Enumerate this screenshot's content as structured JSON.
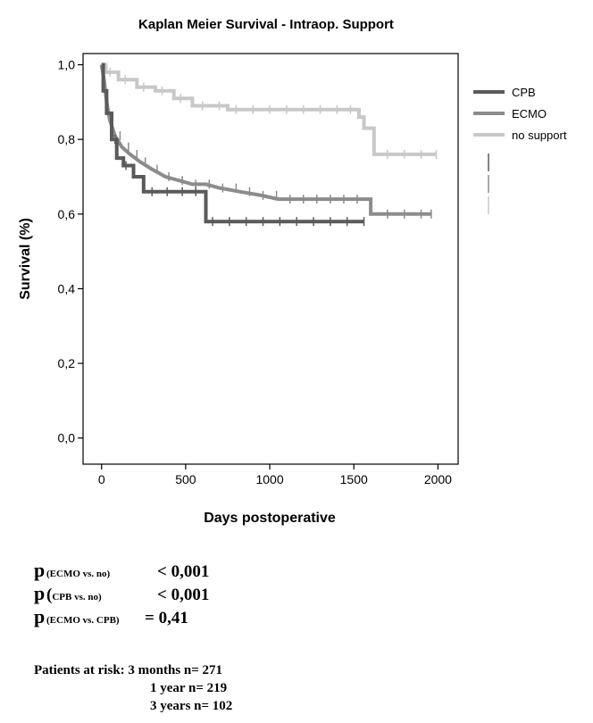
{
  "chart_data": {
    "type": "line",
    "title": "Kaplan Meier Survival - Intraop. Support",
    "xlabel": "Days postoperative",
    "ylabel": "Survival (%)",
    "xlim": [
      -110,
      2120
    ],
    "ylim": [
      -0.07,
      1.03
    ],
    "xticks": [
      0,
      500,
      1000,
      1500,
      2000
    ],
    "xtick_labels": [
      "0",
      "500",
      "1000",
      "1500",
      "2000"
    ],
    "yticks": [
      0.0,
      0.2,
      0.4,
      0.6,
      0.8,
      1.0
    ],
    "ytick_labels": [
      "0,0",
      "0,2",
      "0,4",
      "0,6",
      "0,8",
      "1,0"
    ],
    "grid": false,
    "legend": "right",
    "series": [
      {
        "name": "CPB",
        "color": "#5a5a5a",
        "x": [
          0,
          10,
          10,
          30,
          30,
          60,
          60,
          90,
          90,
          130,
          130,
          190,
          190,
          250,
          250,
          620,
          620,
          1560
        ],
        "y": [
          1.0,
          1.0,
          0.93,
          0.93,
          0.87,
          0.87,
          0.8,
          0.8,
          0.75,
          0.75,
          0.73,
          0.73,
          0.7,
          0.7,
          0.66,
          0.66,
          0.58,
          0.58
        ],
        "censor_x": [
          80,
          145,
          300,
          390,
          480,
          560,
          660,
          760,
          860,
          960,
          1060,
          1160,
          1260,
          1360,
          1460,
          1560
        ]
      },
      {
        "name": "ECMO",
        "color": "#8c8c8c",
        "x": [
          0,
          15,
          30,
          50,
          80,
          120,
          170,
          230,
          300,
          380,
          460,
          540,
          620,
          700,
          820,
          950,
          1050,
          1600,
          1600,
          1960
        ],
        "y": [
          1.0,
          0.96,
          0.9,
          0.85,
          0.81,
          0.78,
          0.76,
          0.74,
          0.72,
          0.7,
          0.69,
          0.68,
          0.68,
          0.67,
          0.66,
          0.65,
          0.64,
          0.64,
          0.6,
          0.6
        ],
        "censor_x": [
          60,
          110,
          160,
          210,
          260,
          330,
          400,
          480,
          560,
          640,
          720,
          800,
          880,
          960,
          1040,
          1120,
          1200,
          1280,
          1360,
          1440,
          1520,
          1700,
          1800,
          1900,
          1960
        ]
      },
      {
        "name": "no support",
        "color": "#c8c8c8",
        "x": [
          0,
          25,
          25,
          100,
          100,
          210,
          210,
          320,
          320,
          430,
          430,
          540,
          540,
          750,
          750,
          1530,
          1530,
          1560,
          1560,
          1620,
          1620,
          1990
        ],
        "y": [
          1.0,
          1.0,
          0.98,
          0.98,
          0.96,
          0.96,
          0.94,
          0.94,
          0.93,
          0.93,
          0.91,
          0.91,
          0.89,
          0.89,
          0.88,
          0.88,
          0.86,
          0.86,
          0.83,
          0.83,
          0.76,
          0.76
        ],
        "censor_x": [
          50,
          140,
          250,
          360,
          470,
          600,
          700,
          800,
          900,
          1000,
          1100,
          1200,
          1300,
          1400,
          1480,
          1700,
          1800,
          1900,
          1990
        ]
      }
    ]
  },
  "stats": {
    "p1": {
      "sub": "(ECMO vs. no)",
      "value": "< 0,001"
    },
    "p2": {
      "paren": "(",
      "sub": "CPB vs. no)",
      "value": "< 0,001"
    },
    "p3": {
      "sub": "(ECMO vs. CPB)",
      "value": "= 0,41"
    }
  },
  "risk": {
    "line1": "Patients at risk: 3 months n= 271",
    "line2": "1 year n= 219",
    "line3": "3 years n= 102"
  }
}
